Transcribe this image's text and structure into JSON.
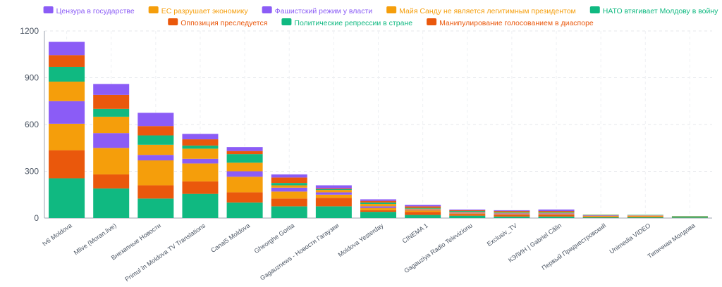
{
  "chart_data": {
    "type": "bar",
    "stacked": true,
    "title": "",
    "xlabel": "",
    "ylabel": "",
    "ylim": [
      0,
      1200
    ],
    "yticks": [
      0,
      300,
      600,
      900,
      1200
    ],
    "grid": true,
    "legend_position": "top",
    "categories": [
      "tv6 Moldova",
      "Mlive (Moran.live)",
      "Внезапные Новости",
      "Primul în Moldova TV Translations",
      "Canal5 Moldova",
      "Gheorghe Gorita",
      "Gagauznews - Новости Гагаузии",
      "Moldova Yesterday",
      "CINEMA 1",
      "Gagauziya Radio Televizionu",
      "Exclusiv_TV",
      "КЭЛИН | Gabriel Călin",
      "Первый Приднестровский",
      "Unimedia VIDEO",
      "Типичная Молдова"
    ],
    "series": [
      {
        "name": "Политические репрессии в стране",
        "color": "#10b981",
        "values": [
          255,
          190,
          125,
          155,
          100,
          75,
          75,
          40,
          20,
          15,
          10,
          10,
          5,
          5,
          5
        ]
      },
      {
        "name": "Оппозиция преследуется",
        "color": "#ea580c",
        "values": [
          180,
          90,
          85,
          80,
          65,
          50,
          55,
          10,
          20,
          10,
          10,
          10,
          5,
          5,
          3
        ]
      },
      {
        "name": "ЕС разрушает экономику",
        "color": "#f59e0b",
        "values": [
          170,
          170,
          160,
          115,
          100,
          45,
          20,
          15,
          10,
          5,
          5,
          5,
          5,
          5,
          2
        ]
      },
      {
        "name": "Цензура в государстве",
        "color": "#8b5cf6",
        "values": [
          145,
          95,
          35,
          30,
          35,
          25,
          15,
          10,
          5,
          5,
          5,
          5,
          3,
          2,
          0
        ]
      },
      {
        "name": "Майя Санду не является легитимным президентом",
        "color": "#f59e0b",
        "values": [
          125,
          105,
          65,
          65,
          55,
          15,
          15,
          15,
          5,
          5,
          5,
          5,
          2,
          2,
          0
        ]
      },
      {
        "name": "НАТО втягивает Молдову в войну",
        "color": "#10b981",
        "values": [
          95,
          50,
          60,
          20,
          55,
          15,
          5,
          10,
          5,
          5,
          5,
          5,
          2,
          2,
          3
        ]
      },
      {
        "name": "Манипулирование голосованием в диаспоре",
        "color": "#ea580c",
        "values": [
          75,
          90,
          60,
          40,
          20,
          35,
          5,
          10,
          10,
          5,
          5,
          5,
          0,
          0,
          0
        ]
      },
      {
        "name": "Фашистский режим у власти",
        "color": "#8b5cf6",
        "values": [
          85,
          70,
          85,
          35,
          25,
          20,
          20,
          10,
          10,
          5,
          5,
          10,
          0,
          0,
          0
        ]
      }
    ]
  }
}
